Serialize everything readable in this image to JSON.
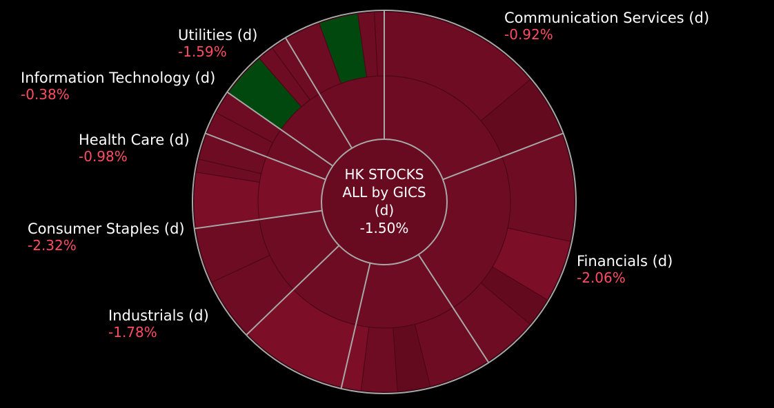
{
  "chart_data": {
    "type": "sunburst",
    "center": {
      "title_line1": "HK STOCKS",
      "title_line2": "ALL by GICS",
      "title_line3": "(d)",
      "change": "-1.50%"
    },
    "sectors": [
      {
        "name": "Communication Services (d)",
        "change": "-0.92%"
      },
      {
        "name": "Financials (d)",
        "change": "-2.06%"
      },
      {
        "name": "Industrials (d)",
        "change": "-1.78%"
      },
      {
        "name": "Consumer Staples (d)",
        "change": "-2.32%"
      },
      {
        "name": "Health Care (d)",
        "change": "-0.98%"
      },
      {
        "name": "Information Technology (d)",
        "change": "-0.38%"
      },
      {
        "name": "Utilities (d)",
        "change": "-1.59%"
      }
    ],
    "colors": {
      "background": "#000000",
      "negative_text": "#ff4d62",
      "label_text": "#ffffff",
      "dark_red": "#640a1f",
      "mid_red": "#6d0c22",
      "bright_red": "#7c0e27",
      "green": "#00480e",
      "divider": "#a8a8a8"
    }
  }
}
